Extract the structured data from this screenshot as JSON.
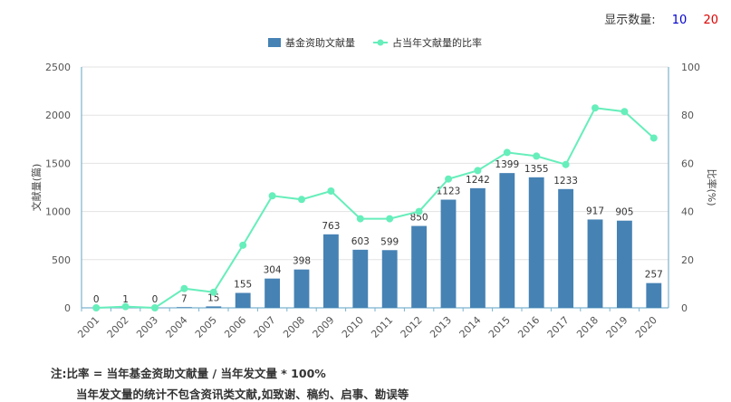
{
  "controls": {
    "display_label": "显示数量:",
    "option_10": "10",
    "option_20": "20",
    "option_10_color": "#0000cc",
    "option_20_color": "#dd0000"
  },
  "notes": {
    "line1": "注:比率 = 当年基金资助文献量 / 当年发文量 * 100%",
    "line2": "当年发文量的统计不包含资讯类文献,如致谢、稿约、启事、勘误等"
  },
  "chart_data": {
    "type": "bar+line",
    "categories": [
      "2001",
      "2002",
      "2003",
      "2004",
      "2005",
      "2006",
      "2007",
      "2008",
      "2009",
      "2010",
      "2011",
      "2012",
      "2013",
      "2014",
      "2015",
      "2016",
      "2017",
      "2018",
      "2019",
      "2020"
    ],
    "series": [
      {
        "name": "基金资助文献量",
        "type": "bar",
        "axis": "left",
        "color": "#4682b4",
        "values": [
          0,
          1,
          0,
          7,
          15,
          155,
          304,
          398,
          763,
          603,
          599,
          850,
          1123,
          1242,
          1399,
          1355,
          1233,
          917,
          905,
          257
        ]
      },
      {
        "name": "占当年文献量的比率",
        "type": "line",
        "axis": "right",
        "color": "#66eebb",
        "values": [
          0,
          0.5,
          0,
          8,
          6.5,
          26,
          46.5,
          45,
          48.5,
          37,
          37,
          40,
          53.5,
          57,
          64.5,
          63,
          59.5,
          83,
          81.5,
          70.5
        ]
      }
    ],
    "ylabel_left": "文献量(篇)",
    "ylabel_right": "比率(%)",
    "ylim_left": [
      0,
      2500
    ],
    "yticks_left": [
      "0",
      "500",
      "1000",
      "1500",
      "2000",
      "2500"
    ],
    "ylim_right": [
      0,
      100
    ],
    "yticks_right": [
      "0",
      "20",
      "40",
      "60",
      "80",
      "100"
    ],
    "grid": true,
    "legend": "top-center"
  }
}
